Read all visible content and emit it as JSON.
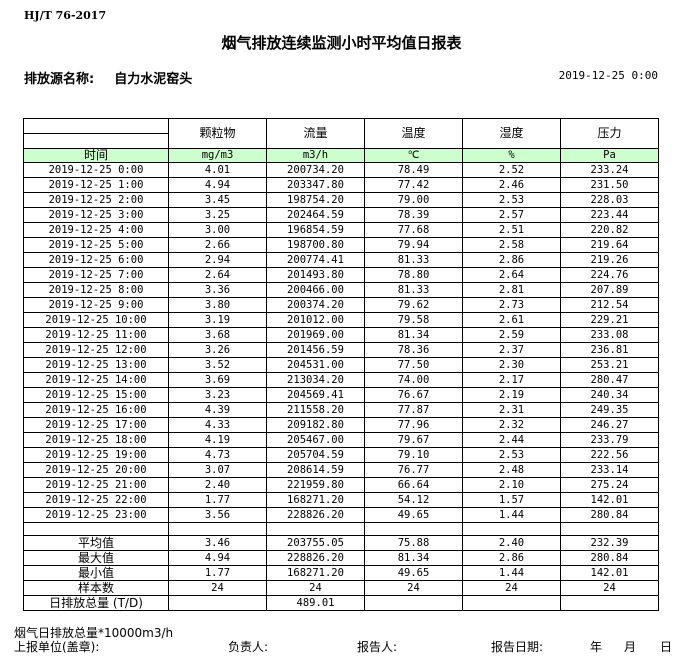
{
  "standard": "HJ/T  76-2017",
  "title": "烟气排放连续监测小时平均值日报表",
  "source_label": "排放源名称:",
  "source_name": "自力水泥窑头",
  "report_datetime": "2019-12-25 0:00",
  "headers": [
    "颗粒物",
    "流量",
    "温度",
    "湿度",
    "压力"
  ],
  "units_label": "时间",
  "units": [
    "mg/m3",
    "m3/h",
    "℃",
    "%",
    "Pa"
  ],
  "rows": [
    [
      "2019-12-25 0:00",
      "4.01",
      "200734.20",
      "78.49",
      "2.52",
      "233.24"
    ],
    [
      "2019-12-25 1:00",
      "4.94",
      "203347.80",
      "77.42",
      "2.46",
      "231.50"
    ],
    [
      "2019-12-25 2:00",
      "3.45",
      "198754.20",
      "79.00",
      "2.53",
      "228.03"
    ],
    [
      "2019-12-25 3:00",
      "3.25",
      "202464.59",
      "78.39",
      "2.57",
      "223.44"
    ],
    [
      "2019-12-25 4:00",
      "3.00",
      "196854.59",
      "77.68",
      "2.51",
      "220.82"
    ],
    [
      "2019-12-25 5:00",
      "2.66",
      "198700.80",
      "79.94",
      "2.58",
      "219.64"
    ],
    [
      "2019-12-25 6:00",
      "2.94",
      "200774.41",
      "81.33",
      "2.86",
      "219.26"
    ],
    [
      "2019-12-25 7:00",
      "2.64",
      "201493.80",
      "78.80",
      "2.64",
      "224.76"
    ],
    [
      "2019-12-25 8:00",
      "3.36",
      "200466.00",
      "81.33",
      "2.81",
      "207.89"
    ],
    [
      "2019-12-25 9:00",
      "3.80",
      "200374.20",
      "79.62",
      "2.73",
      "212.54"
    ],
    [
      "2019-12-25 10:00",
      "3.19",
      "201012.00",
      "79.58",
      "2.61",
      "229.21"
    ],
    [
      "2019-12-25 11:00",
      "3.68",
      "201969.00",
      "81.34",
      "2.59",
      "233.08"
    ],
    [
      "2019-12-25 12:00",
      "3.26",
      "201456.59",
      "78.36",
      "2.37",
      "236.81"
    ],
    [
      "2019-12-25 13:00",
      "3.52",
      "204531.00",
      "77.50",
      "2.30",
      "253.21"
    ],
    [
      "2019-12-25 14:00",
      "3.69",
      "213034.20",
      "74.00",
      "2.17",
      "280.47"
    ],
    [
      "2019-12-25 15:00",
      "3.23",
      "204569.41",
      "76.67",
      "2.19",
      "240.34"
    ],
    [
      "2019-12-25 16:00",
      "4.39",
      "211558.20",
      "77.87",
      "2.31",
      "249.35"
    ],
    [
      "2019-12-25 17:00",
      "4.33",
      "209182.80",
      "77.96",
      "2.32",
      "246.27"
    ],
    [
      "2019-12-25 18:00",
      "4.19",
      "205467.00",
      "79.67",
      "2.44",
      "233.79"
    ],
    [
      "2019-12-25 19:00",
      "4.73",
      "205704.59",
      "79.10",
      "2.53",
      "222.56"
    ],
    [
      "2019-12-25 20:00",
      "3.07",
      "208614.59",
      "76.77",
      "2.48",
      "233.14"
    ],
    [
      "2019-12-25 21:00",
      "2.40",
      "221959.80",
      "66.64",
      "2.10",
      "275.24"
    ],
    [
      "2019-12-25 22:00",
      "1.77",
      "168271.20",
      "54.12",
      "1.57",
      "142.01"
    ],
    [
      "2019-12-25 23:00",
      "3.56",
      "228826.20",
      "49.65",
      "1.44",
      "280.84"
    ]
  ],
  "stats": [
    [
      "平均值",
      "3.46",
      "203755.05",
      "75.88",
      "2.40",
      "232.39"
    ],
    [
      "最大值",
      "4.94",
      "228826.20",
      "81.34",
      "2.86",
      "280.84"
    ],
    [
      "最小值",
      "1.77",
      "168271.20",
      "49.65",
      "1.44",
      "142.01"
    ],
    [
      "样本数",
      "24",
      "24",
      "24",
      "24",
      "24"
    ],
    [
      "日排放总量 (T/D)",
      "",
      "489.01",
      "",
      "",
      ""
    ]
  ],
  "footer": {
    "note": "烟气日排放总量*10000m3/h",
    "unit": "上报单位(盖章):",
    "manager": "负责人:",
    "reporter": "报告人:",
    "report_date": "报告日期:",
    "year": "年",
    "month": "月",
    "day": "日"
  },
  "colors": {
    "unit_row_bg": "#ccffcc"
  }
}
